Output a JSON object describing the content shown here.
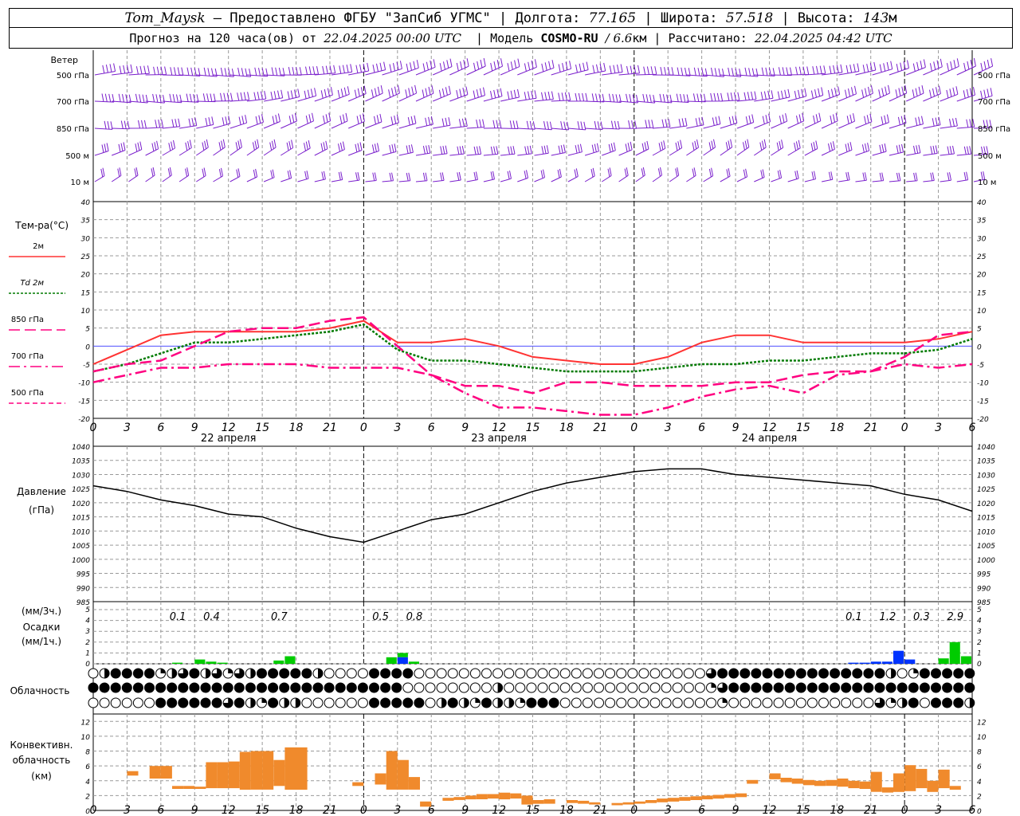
{
  "header": {
    "station": "Tom_Maysk",
    "provided_by": "– Предоставлено ФГБУ \"ЗапСиб УГМС\"",
    "lon_label": "Долгота:",
    "lon_value": "77.165",
    "lat_label": "Широта:",
    "lat_value": "57.518",
    "alt_label": "Высота:",
    "alt_value": "143",
    "alt_unit": "м",
    "forecast_label": "Прогноз на 120 часа(ов) от",
    "forecast_start": "22.04.2025 00:00 UTC",
    "model_label": "Модель",
    "model_name": "COSMO-RU",
    "model_res": "/ 6.6",
    "model_res_unit": "км",
    "calc_label": "Рассчитано:",
    "calc_time": "22.04.2025 04:42 UTC"
  },
  "colors": {
    "t2m": "#ff3333",
    "td2m": "#007a00",
    "t850": "#ff0080",
    "t700": "#ff0080",
    "t500": "#ff0080",
    "wind": "#7a1fcc",
    "pressure": "#000000",
    "precip_rain": "#00cc00",
    "precip_snow": "#0033ff",
    "convective": "#f08a2c",
    "zero_line": "#5050ff"
  },
  "x_axis": {
    "tick_labels": [
      "0",
      "3",
      "6",
      "9",
      "12",
      "15",
      "18",
      "21",
      "0",
      "3",
      "6",
      "9",
      "12",
      "15",
      "18",
      "21",
      "0",
      "3",
      "6",
      "9",
      "12",
      "15",
      "18",
      "21",
      "0",
      "3",
      "6"
    ],
    "day_labels": [
      "22 апреля",
      "23 апреля",
      "24 апреля"
    ]
  },
  "wind_panel": {
    "title": "Ветер",
    "levels": [
      "500 гПа",
      "700 гПа",
      "850 гПа",
      "500 м",
      "10 м"
    ],
    "barb_icon": "wind-barb-icon"
  },
  "chart_data": [
    {
      "type": "line",
      "title": "Тем-ра(°C)",
      "x_hours": [
        0,
        3,
        6,
        9,
        12,
        15,
        18,
        21,
        24,
        27,
        30,
        33,
        36,
        39,
        42,
        45,
        48,
        51,
        54,
        57,
        60,
        63,
        66,
        69,
        72,
        75,
        78
      ],
      "ylim": [
        -20,
        40
      ],
      "y_ticks": [
        -20,
        -15,
        -10,
        -5,
        0,
        5,
        10,
        15,
        20,
        25,
        30,
        35,
        40
      ],
      "series": [
        {
          "name": "2м",
          "style": "solid",
          "values": [
            -5,
            -1,
            3,
            4,
            4,
            4,
            4,
            5,
            7,
            1,
            1,
            2,
            0,
            -3,
            -4,
            -5,
            -5,
            -3,
            1,
            3,
            3,
            1,
            1,
            1,
            1,
            2,
            4
          ]
        },
        {
          "name": "Td 2м",
          "style": "dotted",
          "values": [
            -7,
            -5,
            -2,
            1,
            1,
            2,
            3,
            4,
            6,
            -1,
            -4,
            -4,
            -5,
            -6,
            -7,
            -7,
            -7,
            -6,
            -5,
            -5,
            -4,
            -4,
            -3,
            -2,
            -2,
            -1,
            2
          ]
        },
        {
          "name": "850 гПа",
          "style": "dashed",
          "values": [
            -7,
            -5,
            -4,
            0,
            4,
            5,
            5,
            7,
            8,
            0,
            -8,
            -11,
            -11,
            -13,
            -10,
            -10,
            -11,
            -11,
            -11,
            -10,
            -10,
            -8,
            -7,
            -7,
            -3,
            3,
            4
          ]
        },
        {
          "name": "700 гПа",
          "style": "dashdot",
          "values": [
            -10,
            -8,
            -6,
            -6,
            -5,
            -5,
            -5,
            -6,
            -6,
            -6,
            -8,
            -13,
            -17,
            -17,
            -18,
            -19,
            -19,
            -17,
            -14,
            -12,
            -11,
            -13,
            -8,
            -7,
            -5,
            -6,
            -5
          ]
        },
        {
          "name": "500 гПа",
          "style": "none",
          "values": []
        }
      ]
    },
    {
      "type": "line",
      "title": "Давление",
      "ylabel": "(гПа)",
      "x_hours": [
        0,
        3,
        6,
        9,
        12,
        15,
        18,
        21,
        24,
        27,
        30,
        33,
        36,
        39,
        42,
        45,
        48,
        51,
        54,
        57,
        60,
        63,
        66,
        69,
        72,
        75,
        78
      ],
      "ylim": [
        985,
        1040
      ],
      "y_ticks": [
        985,
        990,
        995,
        1000,
        1005,
        1010,
        1015,
        1020,
        1025,
        1030,
        1035,
        1040
      ],
      "series": [
        {
          "name": "Давление",
          "values": [
            1026,
            1024,
            1021,
            1019,
            1016,
            1015,
            1011,
            1008,
            1006,
            1010,
            1014,
            1016,
            1020,
            1024,
            1027,
            1029,
            1031,
            1032,
            1032,
            1030,
            1029,
            1028,
            1027,
            1026,
            1023,
            1021,
            1017
          ]
        }
      ]
    },
    {
      "type": "bar",
      "title": "Осадки",
      "ylabel_top": "(мм/3ч.)",
      "ylabel_bottom": "(мм/1ч.)",
      "ylim": [
        0,
        5
      ],
      "y_ticks": [
        0,
        1,
        2,
        3,
        4,
        5
      ],
      "totals_3h": [
        {
          "hour": 7.5,
          "value": "0.1"
        },
        {
          "hour": 10.5,
          "value": "0.4"
        },
        {
          "hour": 16.5,
          "value": "0.7"
        },
        {
          "hour": 25.5,
          "value": "0.5"
        },
        {
          "hour": 28.5,
          "value": "0.8"
        },
        {
          "hour": 67.5,
          "value": "0.1"
        },
        {
          "hour": 70.5,
          "value": "1.2"
        },
        {
          "hour": 73.5,
          "value": "0.3"
        },
        {
          "hour": 76.5,
          "value": "2.9"
        }
      ],
      "hourly_bars": [
        {
          "hour": 7,
          "rain": 0.1,
          "snow": 0
        },
        {
          "hour": 9,
          "rain": 0.4,
          "snow": 0
        },
        {
          "hour": 10,
          "rain": 0.2,
          "snow": 0
        },
        {
          "hour": 11,
          "rain": 0.1,
          "snow": 0
        },
        {
          "hour": 16,
          "rain": 0.3,
          "snow": 0
        },
        {
          "hour": 17,
          "rain": 0.7,
          "snow": 0
        },
        {
          "hour": 26,
          "rain": 0.6,
          "snow": 0
        },
        {
          "hour": 27,
          "rain": 0.4,
          "snow": 0.6
        },
        {
          "hour": 28,
          "rain": 0.2,
          "snow": 0
        },
        {
          "hour": 67,
          "rain": 0,
          "snow": 0.1
        },
        {
          "hour": 68,
          "rain": 0,
          "snow": 0.1
        },
        {
          "hour": 69,
          "rain": 0,
          "snow": 0.2
        },
        {
          "hour": 70,
          "rain": 0,
          "snow": 0.2
        },
        {
          "hour": 71,
          "rain": 0,
          "snow": 1.2
        },
        {
          "hour": 72,
          "rain": 0,
          "snow": 0.4
        },
        {
          "hour": 75,
          "rain": 0.5,
          "snow": 0
        },
        {
          "hour": 76,
          "rain": 2.0,
          "snow": 0
        },
        {
          "hour": 77,
          "rain": 0.7,
          "snow": 0
        }
      ]
    },
    {
      "type": "table",
      "title": "Облачность",
      "note": "3 rows of hourly cloud-cover symbols (octas 0-8) for upper/middle/low cloud",
      "rows": [
        [
          0,
          4,
          8,
          8,
          8,
          8,
          2,
          4,
          6,
          8,
          4,
          6,
          2,
          6,
          4,
          8,
          8,
          8,
          8,
          8,
          4,
          0,
          0,
          0,
          0,
          8,
          8,
          8,
          8,
          0,
          0,
          0,
          0,
          0,
          0,
          0,
          0,
          0,
          0,
          0,
          0,
          0,
          0,
          0,
          0,
          0,
          0,
          0,
          0,
          0,
          0,
          0,
          0,
          0,
          0,
          6,
          8,
          8,
          8,
          8,
          8,
          8,
          8,
          8,
          8,
          8,
          8,
          8,
          8,
          8,
          8,
          4,
          0,
          2,
          8,
          8,
          8,
          8,
          8
        ],
        [
          8,
          8,
          8,
          8,
          8,
          8,
          8,
          8,
          8,
          8,
          8,
          8,
          8,
          8,
          8,
          8,
          8,
          8,
          8,
          8,
          8,
          8,
          8,
          8,
          8,
          8,
          8,
          8,
          0,
          0,
          0,
          0,
          0,
          0,
          0,
          0,
          4,
          0,
          0,
          0,
          0,
          0,
          0,
          0,
          0,
          0,
          0,
          0,
          0,
          0,
          0,
          0,
          0,
          0,
          0,
          2,
          6,
          8,
          8,
          8,
          8,
          8,
          8,
          8,
          8,
          8,
          8,
          8,
          8,
          8,
          8,
          8,
          8,
          8,
          8,
          8,
          8,
          8,
          8
        ],
        [
          0,
          0,
          0,
          0,
          0,
          0,
          8,
          8,
          8,
          8,
          8,
          8,
          6,
          8,
          4,
          2,
          8,
          4,
          4,
          0,
          0,
          0,
          0,
          0,
          0,
          8,
          8,
          8,
          8,
          8,
          0,
          4,
          8,
          4,
          2,
          8,
          4,
          4,
          2,
          8,
          8,
          8,
          0,
          0,
          0,
          0,
          0,
          0,
          0,
          0,
          0,
          0,
          0,
          0,
          0,
          0,
          2,
          0,
          0,
          0,
          0,
          0,
          0,
          0,
          0,
          0,
          0,
          0,
          0,
          0,
          6,
          2,
          4,
          8,
          0,
          8,
          8,
          8,
          4
        ]
      ]
    },
    {
      "type": "bar",
      "title": "Конвективн. облачность",
      "ylabel": "(км)",
      "ylim": [
        0,
        13
      ],
      "y_ticks": [
        0,
        2,
        4,
        6,
        8,
        10,
        12
      ],
      "bars": [
        {
          "hour": 3,
          "base": 4.7,
          "top": 5.3
        },
        {
          "hour": 5,
          "base": 4.3,
          "top": 6.0
        },
        {
          "hour": 6,
          "base": 4.3,
          "top": 6.0
        },
        {
          "hour": 7,
          "base": 2.9,
          "top": 3.3
        },
        {
          "hour": 8,
          "base": 2.9,
          "top": 3.3
        },
        {
          "hour": 9,
          "base": 2.9,
          "top": 3.2
        },
        {
          "hour": 10,
          "base": 3.0,
          "top": 6.5
        },
        {
          "hour": 11,
          "base": 3.0,
          "top": 6.5
        },
        {
          "hour": 12,
          "base": 3.0,
          "top": 6.6
        },
        {
          "hour": 13,
          "base": 2.8,
          "top": 7.9
        },
        {
          "hour": 14,
          "base": 2.8,
          "top": 8.0
        },
        {
          "hour": 15,
          "base": 2.8,
          "top": 8.0
        },
        {
          "hour": 16,
          "base": 3.3,
          "top": 6.8
        },
        {
          "hour": 17,
          "base": 2.8,
          "top": 8.5
        },
        {
          "hour": 18,
          "base": 2.8,
          "top": 8.5
        },
        {
          "hour": 23,
          "base": 3.3,
          "top": 3.8
        },
        {
          "hour": 25,
          "base": 3.5,
          "top": 5.0
        },
        {
          "hour": 26,
          "base": 2.8,
          "top": 8.0
        },
        {
          "hour": 27,
          "base": 2.8,
          "top": 6.8
        },
        {
          "hour": 28,
          "base": 2.8,
          "top": 4.5
        },
        {
          "hour": 29,
          "base": 0.5,
          "top": 1.2
        },
        {
          "hour": 31,
          "base": 1.3,
          "top": 1.7
        },
        {
          "hour": 32,
          "base": 1.4,
          "top": 1.8
        },
        {
          "hour": 33,
          "base": 1.5,
          "top": 2.0
        },
        {
          "hour": 34,
          "base": 1.5,
          "top": 2.2
        },
        {
          "hour": 35,
          "base": 1.6,
          "top": 2.2
        },
        {
          "hour": 36,
          "base": 1.5,
          "top": 2.4
        },
        {
          "hour": 37,
          "base": 1.6,
          "top": 2.3
        },
        {
          "hour": 38,
          "base": 0.8,
          "top": 2.0
        },
        {
          "hour": 39,
          "base": 0.9,
          "top": 1.4
        },
        {
          "hour": 40,
          "base": 0.9,
          "top": 1.5
        },
        {
          "hour": 42,
          "base": 1.0,
          "top": 1.4
        },
        {
          "hour": 43,
          "base": 0.9,
          "top": 1.3
        },
        {
          "hour": 44,
          "base": 0.8,
          "top": 1.1
        },
        {
          "hour": 46,
          "base": 0.7,
          "top": 1.0
        },
        {
          "hour": 47,
          "base": 0.8,
          "top": 1.1
        },
        {
          "hour": 48,
          "base": 0.9,
          "top": 1.2
        },
        {
          "hour": 49,
          "base": 1.0,
          "top": 1.4
        },
        {
          "hour": 50,
          "base": 1.1,
          "top": 1.6
        },
        {
          "hour": 51,
          "base": 1.2,
          "top": 1.7
        },
        {
          "hour": 52,
          "base": 1.3,
          "top": 1.8
        },
        {
          "hour": 53,
          "base": 1.4,
          "top": 1.9
        },
        {
          "hour": 54,
          "base": 1.5,
          "top": 2.0
        },
        {
          "hour": 55,
          "base": 1.6,
          "top": 2.1
        },
        {
          "hour": 56,
          "base": 1.7,
          "top": 2.2
        },
        {
          "hour": 57,
          "base": 1.8,
          "top": 2.3
        },
        {
          "hour": 58,
          "base": 3.6,
          "top": 4.1
        },
        {
          "hour": 60,
          "base": 4.2,
          "top": 5.0
        },
        {
          "hour": 61,
          "base": 3.8,
          "top": 4.4
        },
        {
          "hour": 62,
          "base": 3.6,
          "top": 4.3
        },
        {
          "hour": 63,
          "base": 3.4,
          "top": 4.1
        },
        {
          "hour": 64,
          "base": 3.3,
          "top": 4.0
        },
        {
          "hour": 65,
          "base": 3.3,
          "top": 4.1
        },
        {
          "hour": 66,
          "base": 3.2,
          "top": 4.3
        },
        {
          "hour": 67,
          "base": 3.0,
          "top": 4.0
        },
        {
          "hour": 68,
          "base": 2.9,
          "top": 3.9
        },
        {
          "hour": 69,
          "base": 2.5,
          "top": 5.2
        },
        {
          "hour": 70,
          "base": 2.4,
          "top": 3.1
        },
        {
          "hour": 71,
          "base": 2.5,
          "top": 5.0
        },
        {
          "hour": 72,
          "base": 2.6,
          "top": 6.1
        },
        {
          "hour": 73,
          "base": 3.0,
          "top": 5.6
        },
        {
          "hour": 74,
          "base": 2.5,
          "top": 4.0
        },
        {
          "hour": 75,
          "base": 3.0,
          "top": 5.5
        },
        {
          "hour": 76,
          "base": 2.8,
          "top": 3.3
        }
      ]
    }
  ]
}
